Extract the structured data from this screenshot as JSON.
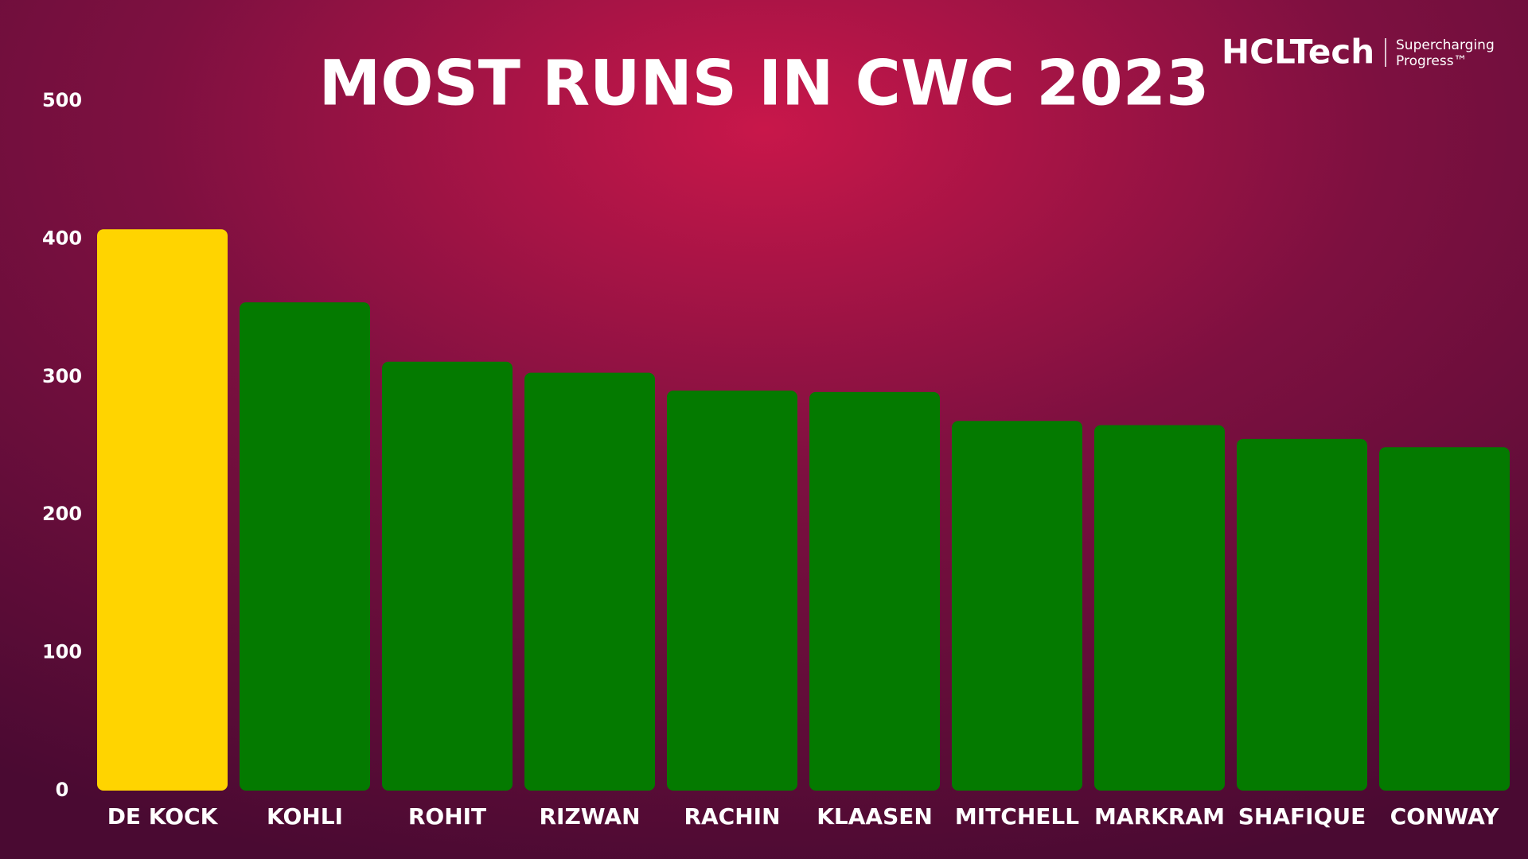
{
  "chart_data": {
    "type": "bar",
    "title": "MOST RUNS IN CWC 2023",
    "categories": [
      "DE KOCK",
      "KOHLI",
      "ROHIT",
      "RIZWAN",
      "RACHIN",
      "KLAASEN",
      "MITCHELL",
      "MARKRAM",
      "SHAFIQUE",
      "CONWAY"
    ],
    "values": [
      407,
      354,
      311,
      303,
      290,
      289,
      268,
      265,
      255,
      249
    ],
    "colors": [
      "#ffd400",
      "#047a00",
      "#047a00",
      "#047a00",
      "#047a00",
      "#047a00",
      "#047a00",
      "#047a00",
      "#047a00",
      "#047a00"
    ],
    "ylim": [
      0,
      500
    ],
    "yticks": [
      0,
      100,
      200,
      300,
      400,
      500
    ],
    "grid": false
  },
  "branding": {
    "logo": "HCLTech",
    "tagline": [
      "Supercharging",
      "Progress™"
    ]
  }
}
